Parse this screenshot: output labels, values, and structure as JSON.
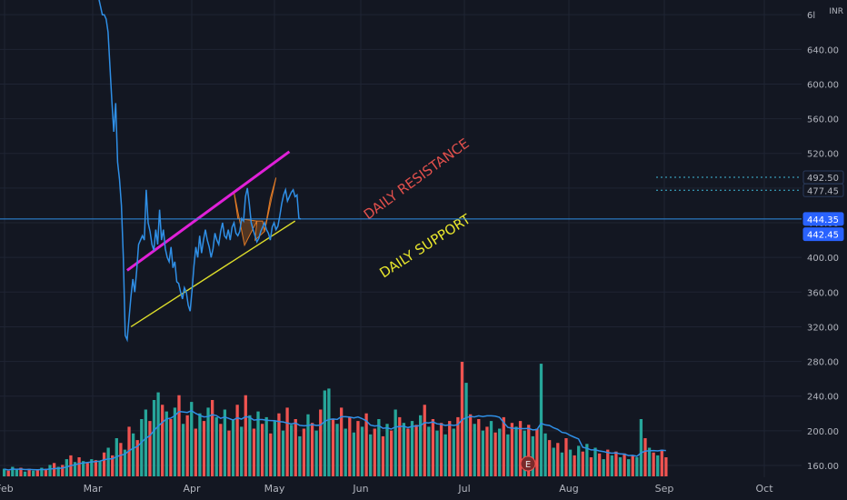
{
  "currency": "INR",
  "colors": {
    "background": "#131722",
    "grid": "#1f2433",
    "price_line": "#2f8fe6",
    "resistance": "#e020d8",
    "support": "#dcdc2a",
    "resistance_text": "#e2504c",
    "support_text": "#e8e62c",
    "volume_up": "#26a69a",
    "volume_down": "#ef5350",
    "volume_ma": "#2f8fe6",
    "pattern_fill": "#e07a26",
    "axis_text": "#b2b5be",
    "price_tag": "#2962ff"
  },
  "chart_data": {
    "type": "line",
    "currency": "INR",
    "x_tick_labels": [
      "Feb",
      "Mar",
      "Apr",
      "May",
      "Jun",
      "Jul",
      "Aug",
      "Sep",
      "Oct"
    ],
    "y_tick_labels": [
      "160.00",
      "200.00",
      "240.00",
      "280.00",
      "320.00",
      "360.00",
      "400.00",
      "440.00",
      "480.00",
      "520.00",
      "560.00",
      "600.00",
      "640.00",
      "6l"
    ],
    "ylim": [
      144,
      680
    ],
    "price_series": {
      "x_days": [
        0,
        2,
        4,
        6,
        8,
        10,
        12,
        14,
        16,
        18,
        20,
        22,
        24,
        26,
        28,
        30,
        32,
        34,
        36,
        38,
        40,
        42,
        44,
        46,
        48,
        50,
        52,
        54,
        56,
        58,
        60,
        62,
        64,
        66,
        68,
        70,
        72,
        74,
        76,
        78,
        80,
        82,
        84,
        86,
        88,
        90,
        92,
        94,
        96,
        98,
        100,
        102,
        104,
        106,
        108,
        110,
        112,
        114,
        116,
        118,
        120,
        122,
        124,
        126,
        128,
        130,
        132,
        134,
        136,
        138,
        140,
        142,
        144,
        146,
        148,
        150,
        152,
        154,
        156,
        158,
        160,
        162,
        164,
        166,
        168,
        170,
        172,
        174,
        176,
        178,
        180,
        182,
        184,
        186,
        188,
        190,
        192,
        194,
        196,
        198,
        200,
        202,
        204,
        206,
        208,
        210,
        212,
        214,
        216,
        218,
        220
      ],
      "close": [
        780,
        760,
        740,
        720,
        700,
        690,
        680,
        680,
        675,
        660,
        620,
        580,
        545,
        578,
        510,
        490,
        460,
        400,
        310,
        305,
        330,
        355,
        375,
        360,
        385,
        415,
        420,
        425,
        420,
        478,
        440,
        430,
        415,
        408,
        432,
        415,
        455,
        420,
        432,
        410,
        400,
        395,
        412,
        388,
        395,
        372,
        370,
        360,
        352,
        365,
        360,
        345,
        338,
        362,
        390,
        412,
        400,
        425,
        405,
        420,
        432,
        420,
        412,
        400,
        410,
        428,
        420,
        415,
        430,
        440,
        425,
        422,
        432,
        420,
        435,
        440,
        428,
        425,
        430,
        445,
        442,
        470,
        480,
        462,
        440,
        432,
        425,
        418,
        422,
        430,
        435,
        440,
        432,
        428,
        420,
        435,
        440,
        432,
        436,
        448,
        462,
        472,
        478,
        465,
        470,
        475,
        478,
        470,
        472,
        445,
        444.35
      ]
    },
    "daily_resistance": {
      "label": "DAILY RESISTANCE",
      "from": {
        "x_days": 38,
        "price": 385
      },
      "to": {
        "x_days": 208,
        "price": 522
      }
    },
    "daily_support": {
      "label": "DAILY SUPPORT",
      "from": {
        "x_days": 42,
        "price": 320
      },
      "to": {
        "x_days": 214,
        "price": 442
      }
    },
    "pattern": [
      {
        "points": [
          [
            150,
            475
          ],
          [
            161,
            414
          ],
          [
            174,
            442
          ],
          [
            154,
            445
          ]
        ]
      },
      {
        "points": [
          [
            174,
            442
          ],
          [
            172,
            420
          ],
          [
            182,
            430
          ],
          [
            180,
            442
          ]
        ]
      },
      {
        "points": [
          [
            182,
            430
          ],
          [
            194,
            492
          ],
          [
            188,
            468
          ]
        ]
      }
    ],
    "price_levels": [
      {
        "label": "492.50",
        "price": 492.5,
        "style": "dotted",
        "tag": "dark"
      },
      {
        "label": "477.45",
        "price": 477.45,
        "style": "dotted",
        "tag": "dark"
      },
      {
        "label": "444.35",
        "price": 444.35,
        "style": "solid",
        "tag": "blue"
      },
      {
        "label": "442.45",
        "price": 442.45,
        "style": "none",
        "tag": "blue"
      }
    ],
    "volume": [
      {
        "v": 8,
        "up": true
      },
      {
        "v": 6,
        "up": false
      },
      {
        "v": 10,
        "up": true
      },
      {
        "v": 7,
        "up": true
      },
      {
        "v": 9,
        "up": false
      },
      {
        "v": 5,
        "up": true
      },
      {
        "v": 8,
        "up": false
      },
      {
        "v": 6,
        "up": true
      },
      {
        "v": 7,
        "up": false
      },
      {
        "v": 9,
        "up": true
      },
      {
        "v": 8,
        "up": false
      },
      {
        "v": 12,
        "up": true
      },
      {
        "v": 14,
        "up": false
      },
      {
        "v": 10,
        "up": true
      },
      {
        "v": 12,
        "up": false
      },
      {
        "v": 18,
        "up": true
      },
      {
        "v": 22,
        "up": false
      },
      {
        "v": 15,
        "up": true
      },
      {
        "v": 20,
        "up": false
      },
      {
        "v": 16,
        "up": true
      },
      {
        "v": 14,
        "up": false
      },
      {
        "v": 18,
        "up": true
      },
      {
        "v": 17,
        "up": false
      },
      {
        "v": 16,
        "up": true
      },
      {
        "v": 25,
        "up": false
      },
      {
        "v": 30,
        "up": true
      },
      {
        "v": 22,
        "up": false
      },
      {
        "v": 40,
        "up": true
      },
      {
        "v": 35,
        "up": false
      },
      {
        "v": 28,
        "up": true
      },
      {
        "v": 52,
        "up": false
      },
      {
        "v": 45,
        "up": true
      },
      {
        "v": 38,
        "up": false
      },
      {
        "v": 60,
        "up": true
      },
      {
        "v": 70,
        "up": true
      },
      {
        "v": 58,
        "up": false
      },
      {
        "v": 80,
        "up": true
      },
      {
        "v": 88,
        "up": true
      },
      {
        "v": 75,
        "up": false
      },
      {
        "v": 68,
        "up": true
      },
      {
        "v": 60,
        "up": false
      },
      {
        "v": 72,
        "up": true
      },
      {
        "v": 85,
        "up": false
      },
      {
        "v": 55,
        "up": true
      },
      {
        "v": 64,
        "up": false
      },
      {
        "v": 78,
        "up": true
      },
      {
        "v": 50,
        "up": false
      },
      {
        "v": 66,
        "up": true
      },
      {
        "v": 58,
        "up": false
      },
      {
        "v": 72,
        "up": true
      },
      {
        "v": 80,
        "up": false
      },
      {
        "v": 62,
        "up": true
      },
      {
        "v": 55,
        "up": false
      },
      {
        "v": 70,
        "up": true
      },
      {
        "v": 48,
        "up": false
      },
      {
        "v": 60,
        "up": true
      },
      {
        "v": 75,
        "up": false
      },
      {
        "v": 52,
        "up": true
      },
      {
        "v": 85,
        "up": false
      },
      {
        "v": 64,
        "up": true
      },
      {
        "v": 50,
        "up": false
      },
      {
        "v": 68,
        "up": true
      },
      {
        "v": 55,
        "up": false
      },
      {
        "v": 62,
        "up": true
      },
      {
        "v": 45,
        "up": false
      },
      {
        "v": 58,
        "up": true
      },
      {
        "v": 66,
        "up": false
      },
      {
        "v": 48,
        "up": true
      },
      {
        "v": 72,
        "up": false
      },
      {
        "v": 54,
        "up": true
      },
      {
        "v": 60,
        "up": false
      },
      {
        "v": 42,
        "up": true
      },
      {
        "v": 50,
        "up": false
      },
      {
        "v": 65,
        "up": true
      },
      {
        "v": 56,
        "up": false
      },
      {
        "v": 48,
        "up": true
      },
      {
        "v": 70,
        "up": false
      },
      {
        "v": 90,
        "up": true
      },
      {
        "v": 92,
        "up": true
      },
      {
        "v": 60,
        "up": false
      },
      {
        "v": 55,
        "up": true
      },
      {
        "v": 72,
        "up": false
      },
      {
        "v": 50,
        "up": true
      },
      {
        "v": 62,
        "up": false
      },
      {
        "v": 46,
        "up": true
      },
      {
        "v": 58,
        "up": false
      },
      {
        "v": 52,
        "up": true
      },
      {
        "v": 66,
        "up": false
      },
      {
        "v": 44,
        "up": true
      },
      {
        "v": 50,
        "up": false
      },
      {
        "v": 60,
        "up": true
      },
      {
        "v": 42,
        "up": false
      },
      {
        "v": 55,
        "up": true
      },
      {
        "v": 48,
        "up": false
      },
      {
        "v": 70,
        "up": true
      },
      {
        "v": 62,
        "up": false
      },
      {
        "v": 56,
        "up": true
      },
      {
        "v": 50,
        "up": false
      },
      {
        "v": 58,
        "up": true
      },
      {
        "v": 54,
        "up": false
      },
      {
        "v": 64,
        "up": true
      },
      {
        "v": 75,
        "up": false
      },
      {
        "v": 52,
        "up": true
      },
      {
        "v": 60,
        "up": false
      },
      {
        "v": 48,
        "up": true
      },
      {
        "v": 56,
        "up": false
      },
      {
        "v": 44,
        "up": true
      },
      {
        "v": 58,
        "up": false
      },
      {
        "v": 50,
        "up": true
      },
      {
        "v": 62,
        "up": false
      },
      {
        "v": 120,
        "up": false
      },
      {
        "v": 98,
        "up": true
      },
      {
        "v": 65,
        "up": false
      },
      {
        "v": 55,
        "up": true
      },
      {
        "v": 60,
        "up": false
      },
      {
        "v": 48,
        "up": true
      },
      {
        "v": 52,
        "up": false
      },
      {
        "v": 58,
        "up": true
      },
      {
        "v": 46,
        "up": false
      },
      {
        "v": 50,
        "up": true
      },
      {
        "v": 62,
        "up": false
      },
      {
        "v": 44,
        "up": true
      },
      {
        "v": 56,
        "up": false
      },
      {
        "v": 52,
        "up": true
      },
      {
        "v": 58,
        "up": false
      },
      {
        "v": 48,
        "up": true
      },
      {
        "v": 54,
        "up": false
      },
      {
        "v": 42,
        "up": true
      },
      {
        "v": 50,
        "up": false
      },
      {
        "v": 118,
        "up": true
      },
      {
        "v": 45,
        "up": true
      },
      {
        "v": 38,
        "up": false
      },
      {
        "v": 30,
        "up": true
      },
      {
        "v": 35,
        "up": false
      },
      {
        "v": 25,
        "up": true
      },
      {
        "v": 40,
        "up": false
      },
      {
        "v": 28,
        "up": true
      },
      {
        "v": 22,
        "up": false
      },
      {
        "v": 32,
        "up": true
      },
      {
        "v": 26,
        "up": false
      },
      {
        "v": 34,
        "up": true
      },
      {
        "v": 20,
        "up": false
      },
      {
        "v": 30,
        "up": true
      },
      {
        "v": 24,
        "up": false
      },
      {
        "v": 18,
        "up": true
      },
      {
        "v": 28,
        "up": false
      },
      {
        "v": 22,
        "up": true
      },
      {
        "v": 26,
        "up": false
      },
      {
        "v": 20,
        "up": true
      },
      {
        "v": 24,
        "up": false
      },
      {
        "v": 18,
        "up": true
      },
      {
        "v": 22,
        "up": false
      },
      {
        "v": 20,
        "up": true
      },
      {
        "v": 60,
        "up": true
      },
      {
        "v": 40,
        "up": false
      },
      {
        "v": 30,
        "up": true
      },
      {
        "v": 25,
        "up": false
      },
      {
        "v": 22,
        "up": true
      },
      {
        "v": 28,
        "up": false
      },
      {
        "v": 20,
        "up": false
      }
    ],
    "earnings_marker": "E"
  }
}
